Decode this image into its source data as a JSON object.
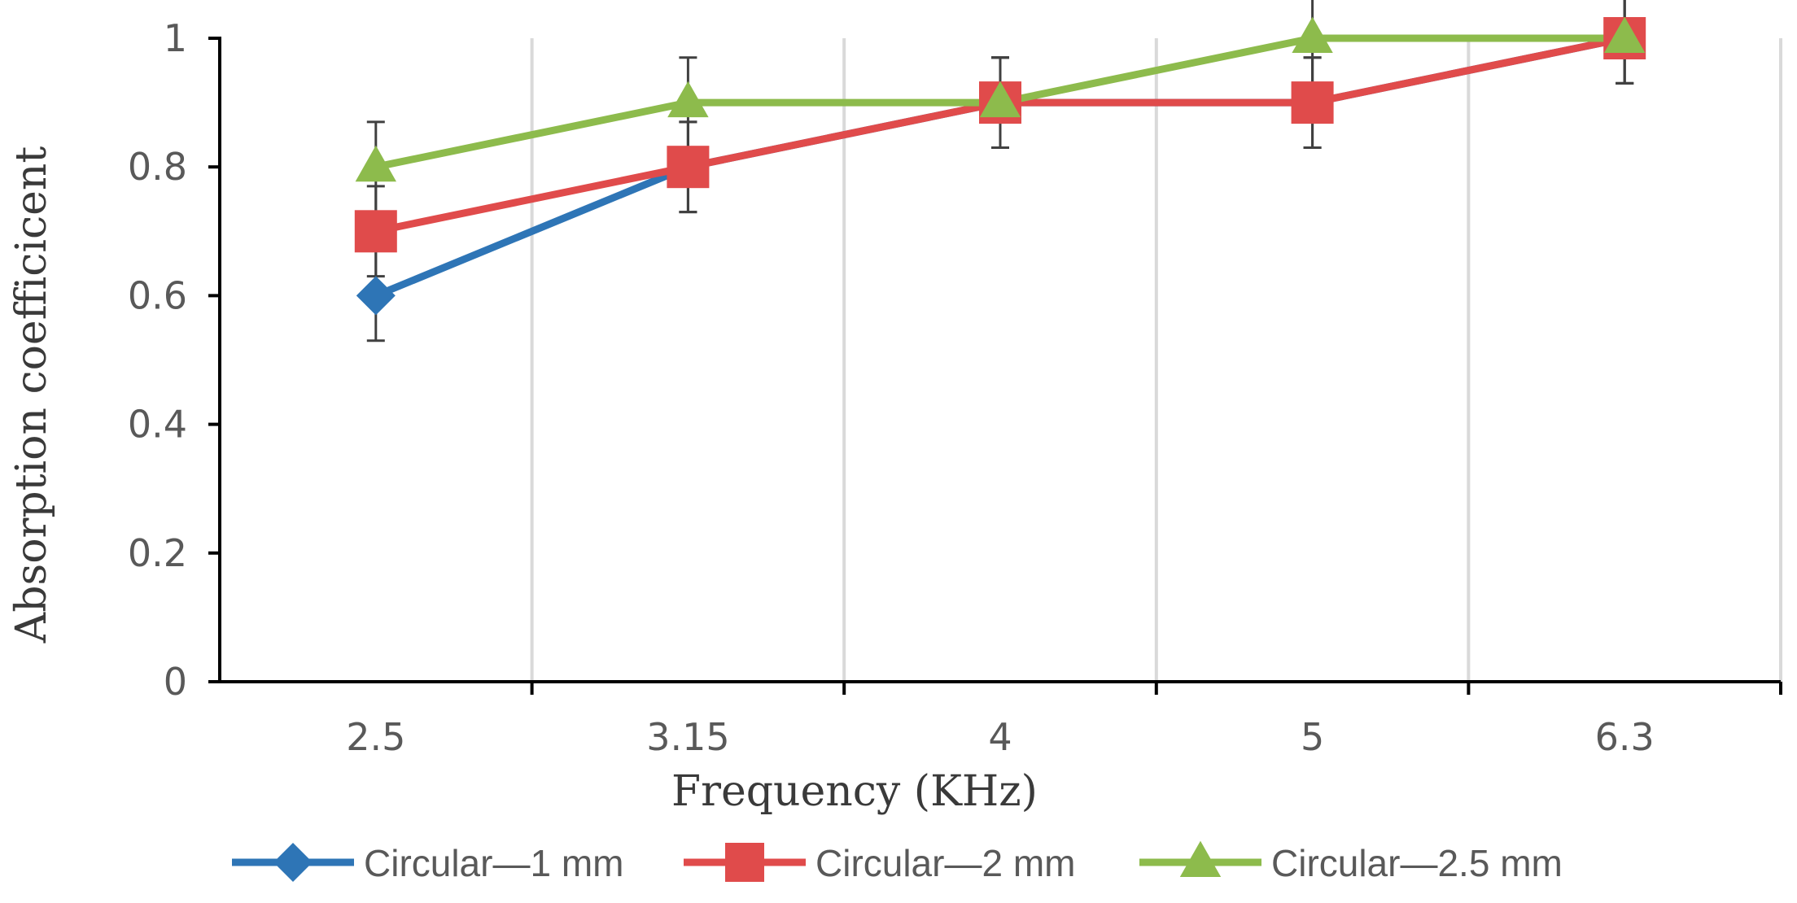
{
  "chart_data": {
    "type": "line",
    "title": "",
    "xlabel": "Frequency (KHz)",
    "ylabel": "Absorption coefficicent",
    "categories": [
      "2.5",
      "3.15",
      "4",
      "5",
      "6.3"
    ],
    "ylim": [
      0,
      1
    ],
    "yticks": [
      "0",
      "0.2",
      "0.4",
      "0.6",
      "0.8",
      "1"
    ],
    "grid": "vertical",
    "legend": "bottom",
    "error_bar": 0.07,
    "series": [
      {
        "name": "Circular—1 mm",
        "marker": "diamond",
        "color": "#2E75B6",
        "values": [
          0.6,
          0.8,
          0.9,
          0.9,
          1.0
        ]
      },
      {
        "name": "Circular—2 mm",
        "marker": "square",
        "color": "#E04B4B",
        "values": [
          0.7,
          0.8,
          0.9,
          0.9,
          1.0
        ]
      },
      {
        "name": "Circular—2.5 mm",
        "marker": "triangle",
        "color": "#8DBB4C",
        "values": [
          0.8,
          0.9,
          0.9,
          1.0,
          1.0
        ]
      }
    ]
  }
}
